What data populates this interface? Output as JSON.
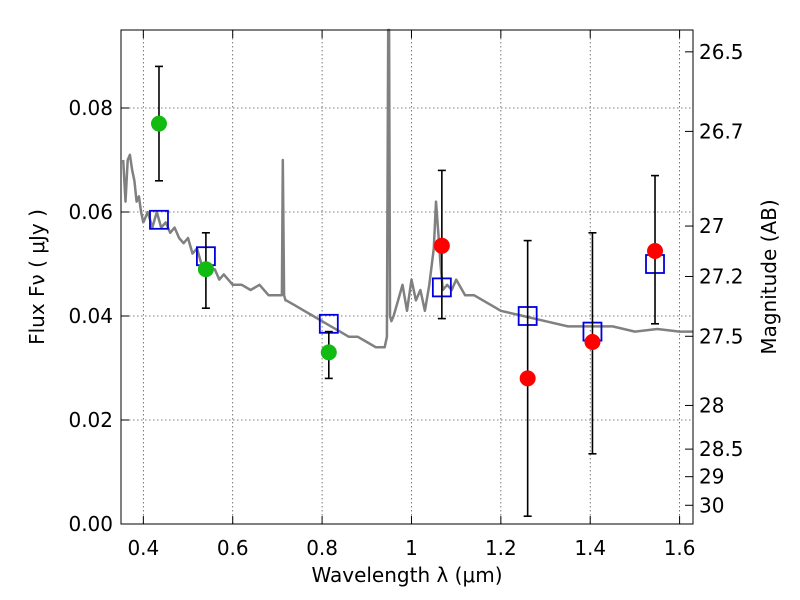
{
  "chart_data": {
    "type": "scatter",
    "title": "",
    "xlabel": "Wavelength  λ (μm)",
    "ylabel": "Flux  Fν  ( μJy )",
    "y2label": "Magnitude (AB)",
    "xlim": [
      0.35,
      1.63
    ],
    "ylim": [
      0.0,
      0.095
    ],
    "grid": true,
    "xticks": [
      0.4,
      0.6,
      0.8,
      1.0,
      1.2,
      1.4,
      1.6
    ],
    "xticklabels": [
      "0.4",
      "0.6",
      "0.8",
      "1",
      "1.2",
      "1.4",
      "1.6"
    ],
    "yticks": [
      0.0,
      0.02,
      0.04,
      0.06,
      0.08
    ],
    "yticklabels": [
      "0.00",
      "0.02",
      "0.04",
      "0.06",
      "0.08"
    ],
    "y2ticks": [
      {
        "label": "26.5",
        "flux": 0.0908
      },
      {
        "label": "26.7",
        "flux": 0.0755
      },
      {
        "label": "27",
        "flux": 0.0573
      },
      {
        "label": "27.2",
        "flux": 0.0476
      },
      {
        "label": "27.5",
        "flux": 0.0361
      },
      {
        "label": "28",
        "flux": 0.0228
      },
      {
        "label": "28.5",
        "flux": 0.0144
      },
      {
        "label": "29",
        "flux": 0.0091
      },
      {
        "label": "30",
        "flux": 0.0036
      }
    ],
    "colors": {
      "model": "#808080",
      "green": "#11bb11",
      "red": "#ff0000",
      "box": "#0000dd",
      "errorbar": "#000000",
      "grid": "#555555"
    },
    "series": [
      {
        "kind": "line",
        "x": [
          0.355,
          0.36,
          0.365,
          0.37,
          0.375,
          0.38,
          0.385,
          0.39,
          0.395,
          0.4,
          0.41,
          0.42,
          0.43,
          0.44,
          0.45,
          0.46,
          0.47,
          0.48,
          0.49,
          0.5,
          0.51,
          0.52,
          0.53,
          0.54,
          0.55,
          0.56,
          0.57,
          0.58,
          0.6,
          0.62,
          0.64,
          0.66,
          0.68,
          0.7,
          0.71,
          0.712,
          0.715,
          0.718,
          0.72,
          0.74,
          0.76,
          0.78,
          0.8,
          0.82,
          0.84,
          0.86,
          0.88,
          0.9,
          0.92,
          0.94,
          0.945,
          0.948,
          0.95,
          0.952,
          0.955,
          0.96,
          0.97,
          0.98,
          0.99,
          1.0,
          1.01,
          1.02,
          1.03,
          1.04,
          1.05,
          1.055,
          1.06,
          1.065,
          1.07,
          1.08,
          1.09,
          1.1,
          1.12,
          1.14,
          1.16,
          1.18,
          1.2,
          1.25,
          1.3,
          1.35,
          1.4,
          1.45,
          1.5,
          1.55,
          1.6,
          1.63
        ],
        "y": [
          0.07,
          0.062,
          0.07,
          0.071,
          0.068,
          0.066,
          0.062,
          0.063,
          0.06,
          0.058,
          0.06,
          0.057,
          0.06,
          0.057,
          0.058,
          0.056,
          0.057,
          0.055,
          0.054,
          0.055,
          0.052,
          0.053,
          0.05,
          0.05,
          0.049,
          0.049,
          0.047,
          0.048,
          0.046,
          0.046,
          0.045,
          0.046,
          0.044,
          0.044,
          0.044,
          0.07,
          0.044,
          0.043,
          0.043,
          0.042,
          0.041,
          0.04,
          0.039,
          0.038,
          0.037,
          0.036,
          0.036,
          0.035,
          0.034,
          0.034,
          0.036,
          0.095,
          0.095,
          0.04,
          0.039,
          0.04,
          0.043,
          0.046,
          0.041,
          0.047,
          0.043,
          0.045,
          0.041,
          0.046,
          0.053,
          0.062,
          0.056,
          0.05,
          0.045,
          0.046,
          0.045,
          0.047,
          0.044,
          0.044,
          0.043,
          0.042,
          0.041,
          0.04,
          0.039,
          0.038,
          0.038,
          0.038,
          0.037,
          0.0375,
          0.037,
          0.037
        ]
      },
      {
        "kind": "points",
        "color": "green",
        "x": [
          0.435,
          0.54,
          0.815
        ],
        "y": [
          0.077,
          0.049,
          0.033
        ],
        "err": [
          [
            0.066,
            0.088
          ],
          [
            0.0415,
            0.056
          ],
          [
            0.028,
            0.037
          ]
        ]
      },
      {
        "kind": "points",
        "color": "red",
        "x": [
          1.068,
          1.26,
          1.405,
          1.545
        ],
        "y": [
          0.0535,
          0.028,
          0.035,
          0.0525
        ],
        "err": [
          [
            0.0395,
            0.068
          ],
          [
            0.0015,
            0.0545
          ],
          [
            0.0135,
            0.056
          ],
          [
            0.0385,
            0.067
          ]
        ]
      },
      {
        "kind": "model-boxes",
        "color": "box",
        "x": [
          0.435,
          0.54,
          0.815,
          1.068,
          1.26,
          1.405,
          1.545
        ],
        "y": [
          0.0585,
          0.0515,
          0.0385,
          0.0455,
          0.04,
          0.037,
          0.05
        ]
      }
    ]
  }
}
